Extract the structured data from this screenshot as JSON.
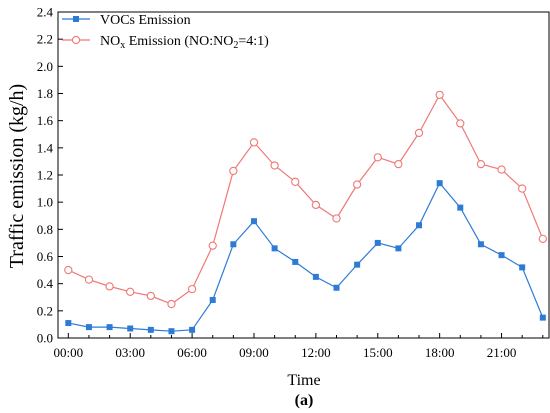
{
  "chart_data": {
    "type": "line",
    "xlabel": "Time",
    "ylabel": "Traffic emission (kg/h)",
    "caption": "(a)",
    "x": [
      0,
      1,
      2,
      3,
      4,
      5,
      6,
      7,
      8,
      9,
      10,
      11,
      12,
      13,
      14,
      15,
      16,
      17,
      18,
      19,
      20,
      21,
      22,
      23
    ],
    "xticks": [
      0,
      3,
      6,
      9,
      12,
      15,
      18,
      21
    ],
    "xtick_labels": [
      "00:00",
      "03:00",
      "06:00",
      "09:00",
      "12:00",
      "15:00",
      "18:00",
      "21:00"
    ],
    "xlim": [
      -0.5,
      23.3
    ],
    "ylim": [
      0,
      2.4
    ],
    "yticks": [
      0.0,
      0.2,
      0.4,
      0.6,
      0.8,
      1.0,
      1.2,
      1.4,
      1.6,
      1.8,
      2.0,
      2.2,
      2.4
    ],
    "ytick_labels": [
      "0.0",
      "0.2",
      "0.4",
      "0.6",
      "0.8",
      "1.0",
      "1.2",
      "1.4",
      "1.6",
      "1.8",
      "2.0",
      "2.2",
      "2.4"
    ],
    "grid": false,
    "legend_position": "top-left",
    "series": [
      {
        "name": "VOCs Emission",
        "color": "#2e7bd6",
        "marker": "filled-square",
        "values": [
          0.11,
          0.08,
          0.08,
          0.07,
          0.06,
          0.05,
          0.06,
          0.28,
          0.69,
          0.86,
          0.66,
          0.56,
          0.45,
          0.37,
          0.54,
          0.7,
          0.66,
          0.83,
          1.14,
          0.96,
          0.69,
          0.61,
          0.52,
          0.15
        ]
      },
      {
        "name": "NOx Emission (NO:NO2=4:1)",
        "name_parts": {
          "a": "NO",
          "b": "x",
          "c": " Emission (NO:NO",
          "d": "2",
          "e": "=4:1)"
        },
        "color": "#f07878",
        "marker": "open-circle",
        "values": [
          0.5,
          0.43,
          0.38,
          0.34,
          0.31,
          0.25,
          0.36,
          0.68,
          1.23,
          1.44,
          1.27,
          1.15,
          0.98,
          0.88,
          1.13,
          1.33,
          1.28,
          1.51,
          1.79,
          1.58,
          1.28,
          1.24,
          1.1,
          0.73
        ]
      }
    ]
  }
}
